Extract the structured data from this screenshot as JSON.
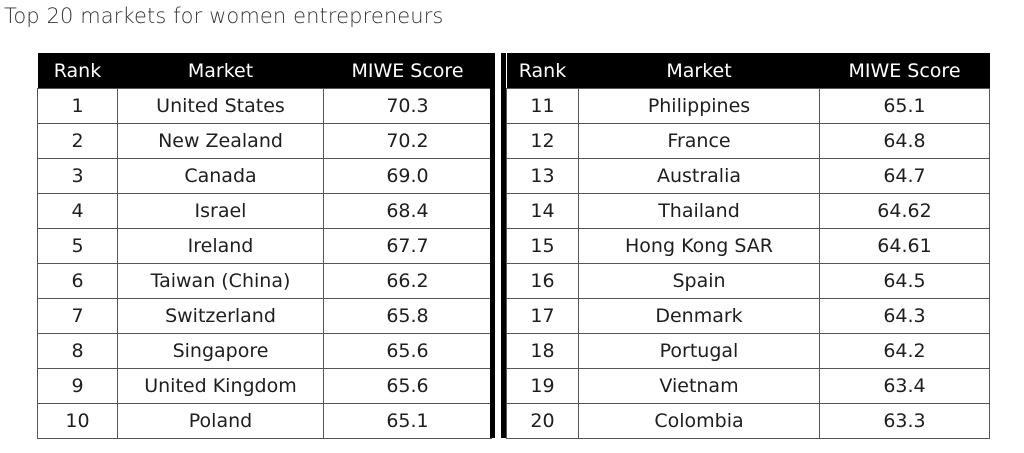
{
  "title": "Top 20 markets for women entrepreneurs",
  "columns": [
    "Rank",
    "Market",
    "MIWE Score"
  ],
  "left_rows": [
    {
      "rank": "1",
      "market": "United States",
      "score": "70.3"
    },
    {
      "rank": "2",
      "market": "New Zealand",
      "score": "70.2"
    },
    {
      "rank": "3",
      "market": "Canada",
      "score": "69.0"
    },
    {
      "rank": "4",
      "market": "Israel",
      "score": "68.4"
    },
    {
      "rank": "5",
      "market": "Ireland",
      "score": "67.7"
    },
    {
      "rank": "6",
      "market": "Taiwan (China)",
      "score": "66.2"
    },
    {
      "rank": "7",
      "market": "Switzerland",
      "score": "65.8"
    },
    {
      "rank": "8",
      "market": "Singapore",
      "score": "65.6"
    },
    {
      "rank": "9",
      "market": "United Kingdom",
      "score": "65.6"
    },
    {
      "rank": "10",
      "market": "Poland",
      "score": "65.1"
    }
  ],
  "right_rows": [
    {
      "rank": "11",
      "market": "Philippines",
      "score": "65.1"
    },
    {
      "rank": "12",
      "market": "France",
      "score": "64.8"
    },
    {
      "rank": "13",
      "market": "Australia",
      "score": "64.7"
    },
    {
      "rank": "14",
      "market": "Thailand",
      "score": "64.62"
    },
    {
      "rank": "15",
      "market": "Hong Kong SAR",
      "score": "64.61"
    },
    {
      "rank": "16",
      "market": "Spain",
      "score": "64.5"
    },
    {
      "rank": "17",
      "market": "Denmark",
      "score": "64.3"
    },
    {
      "rank": "18",
      "market": "Portugal",
      "score": "64.2"
    },
    {
      "rank": "19",
      "market": "Vietnam",
      "score": "63.4"
    },
    {
      "rank": "20",
      "market": "Colombia",
      "score": "63.3"
    }
  ],
  "colors": {
    "header_background": "#000000",
    "header_text": "#ffffff",
    "cell_border": "#555555"
  }
}
